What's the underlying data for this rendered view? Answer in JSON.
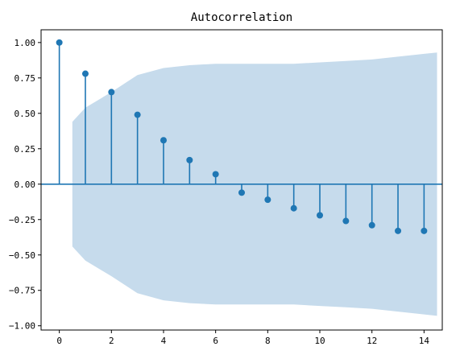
{
  "chart_data": {
    "type": "acf-stem",
    "title": "Autocorrelation",
    "xlabel": "",
    "ylabel": "",
    "xlim": [
      -0.7,
      14.7
    ],
    "ylim": [
      -1.03,
      1.09
    ],
    "grid": false,
    "legend": "none",
    "x_ticks": [
      0,
      2,
      4,
      6,
      8,
      10,
      12,
      14
    ],
    "x_tick_labels": [
      "0",
      "2",
      "4",
      "6",
      "8",
      "10",
      "12",
      "14"
    ],
    "y_ticks": [
      1.0,
      0.75,
      0.5,
      0.25,
      0.0,
      -0.25,
      -0.5,
      -0.75,
      -1.0
    ],
    "y_tick_labels": [
      "1.00",
      "0.75",
      "0.50",
      "0.25",
      "0.00",
      "−0.25",
      "−0.50",
      "−0.75",
      "−1.00"
    ],
    "lags": [
      0,
      1,
      2,
      3,
      4,
      5,
      6,
      7,
      8,
      9,
      10,
      11,
      12,
      13,
      14
    ],
    "values": [
      1.0,
      0.78,
      0.65,
      0.49,
      0.31,
      0.17,
      0.07,
      -0.06,
      -0.11,
      -0.17,
      -0.22,
      -0.26,
      -0.29,
      -0.33,
      -0.33
    ],
    "confidence_band": {
      "x": [
        0.5,
        1,
        2,
        3,
        4,
        5,
        6,
        7,
        8,
        9,
        10,
        11,
        12,
        13,
        14,
        14.5
      ],
      "upper": [
        0.44,
        0.54,
        0.65,
        0.77,
        0.82,
        0.84,
        0.85,
        0.85,
        0.85,
        0.85,
        0.86,
        0.87,
        0.88,
        0.9,
        0.92,
        0.93
      ]
    },
    "colors": {
      "stem": "#1f77b4",
      "band": "#c6dbec",
      "zero_line": "#1f77b4"
    }
  }
}
